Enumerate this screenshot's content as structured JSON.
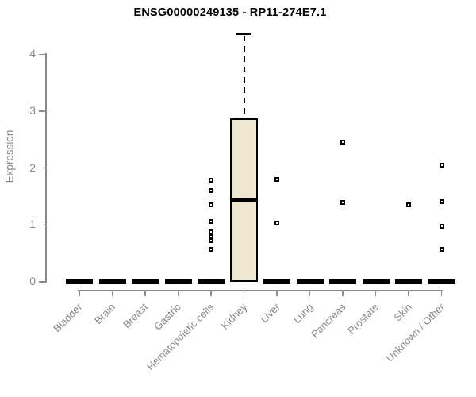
{
  "colors": {
    "box_fill": "#EDE8CF",
    "box_border": "#000000",
    "median": "#000000",
    "axis": "#898989",
    "title_text": "#000000",
    "background": "#FFFFFF"
  },
  "chart_data": {
    "type": "boxplot",
    "title": "ENSG00000249135 - RP11-274E7.1",
    "xlabel": "",
    "ylabel": "Expression",
    "ylim": [
      0,
      4.4
    ],
    "yticks": [
      0,
      1,
      2,
      3,
      4
    ],
    "grid": "off",
    "legend": "none",
    "x_tick_rotation_deg": 45,
    "categories": [
      "Bladder",
      "Brain",
      "Breast",
      "Gastric",
      "Hematopoietic cells",
      "Kidney",
      "Liver",
      "Lung",
      "Pancreas",
      "Prostate",
      "Skin",
      "Unknown / Other"
    ],
    "series": [
      {
        "category": "Bladder",
        "q1": 0,
        "median": 0,
        "q3": 0,
        "whisker_low": 0,
        "whisker_high": 0,
        "outliers": []
      },
      {
        "category": "Brain",
        "q1": 0,
        "median": 0,
        "q3": 0,
        "whisker_low": 0,
        "whisker_high": 0,
        "outliers": []
      },
      {
        "category": "Breast",
        "q1": 0,
        "median": 0,
        "q3": 0,
        "whisker_low": 0,
        "whisker_high": 0,
        "outliers": []
      },
      {
        "category": "Gastric",
        "q1": 0,
        "median": 0,
        "q3": 0,
        "whisker_low": 0,
        "whisker_high": 0,
        "outliers": []
      },
      {
        "category": "Hematopoietic cells",
        "q1": 0,
        "median": 0,
        "q3": 0,
        "whisker_low": 0,
        "whisker_high": 0,
        "outliers": [
          1.78,
          1.6,
          1.35,
          1.06,
          0.88,
          0.79,
          0.73,
          0.57
        ]
      },
      {
        "category": "Kidney",
        "q1": 0,
        "median": 1.45,
        "q3": 2.88,
        "whisker_low": 0,
        "whisker_high": 4.35,
        "outliers": []
      },
      {
        "category": "Liver",
        "q1": 0,
        "median": 0,
        "q3": 0,
        "whisker_low": 0,
        "whisker_high": 0,
        "outliers": [
          1.8,
          1.03
        ]
      },
      {
        "category": "Lung",
        "q1": 0,
        "median": 0,
        "q3": 0,
        "whisker_low": 0,
        "whisker_high": 0,
        "outliers": []
      },
      {
        "category": "Pancreas",
        "q1": 0,
        "median": 0,
        "q3": 0,
        "whisker_low": 0,
        "whisker_high": 0,
        "outliers": [
          2.46,
          1.4
        ]
      },
      {
        "category": "Prostate",
        "q1": 0,
        "median": 0,
        "q3": 0,
        "whisker_low": 0,
        "whisker_high": 0,
        "outliers": []
      },
      {
        "category": "Skin",
        "q1": 0,
        "median": 0,
        "q3": 0,
        "whisker_low": 0,
        "whisker_high": 0,
        "outliers": [
          1.35
        ]
      },
      {
        "category": "Unknown / Other",
        "q1": 0,
        "median": 0,
        "q3": 0,
        "whisker_low": 0,
        "whisker_high": 0,
        "outliers": [
          2.05,
          1.41,
          0.98,
          0.57
        ]
      }
    ]
  }
}
